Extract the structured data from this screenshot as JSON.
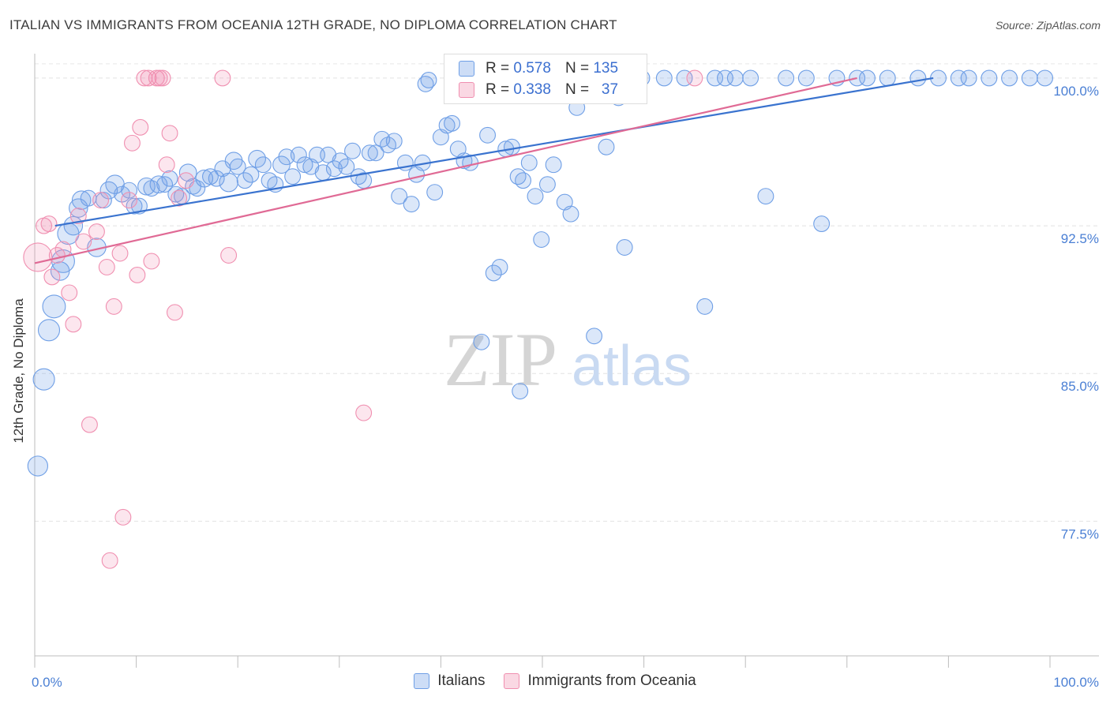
{
  "title": "ITALIAN VS IMMIGRANTS FROM OCEANIA 12TH GRADE, NO DIPLOMA CORRELATION CHART",
  "source": "Source: ZipAtlas.com",
  "watermark": {
    "zip": "ZIP",
    "atlas": "atlas"
  },
  "legend_top": [
    {
      "r_label": "R =",
      "r_value": "0.578",
      "n_label": "N =",
      "n_value": "135",
      "color": "#6f9fe6"
    },
    {
      "r_label": "R =",
      "r_value": "0.338",
      "n_label": "N =",
      "n_value": "37",
      "color": "#f08fb0"
    }
  ],
  "legend_bottom": [
    {
      "label": "Italians",
      "color": "#6f9fe6"
    },
    {
      "label": "Immigrants from Oceania",
      "color": "#f08fb0"
    }
  ],
  "chart_data": {
    "type": "scatter",
    "title": "ITALIAN VS IMMIGRANTS FROM OCEANIA 12TH GRADE, NO DIPLOMA CORRELATION CHART",
    "xlabel": "",
    "ylabel": "12th Grade, No Diploma",
    "xlim": [
      0,
      100
    ],
    "ylim": [
      70.7,
      101.4
    ],
    "x_tick_labels": [
      {
        "value": 0,
        "label": "0.0%"
      },
      {
        "value": 100,
        "label": "100.0%"
      }
    ],
    "y_tick_labels": [
      {
        "value": 100.0,
        "label": "100.0%"
      },
      {
        "value": 92.5,
        "label": "92.5%"
      },
      {
        "value": 85.0,
        "label": "85.0%"
      },
      {
        "value": 77.5,
        "label": "77.5%"
      }
    ],
    "grid": true,
    "legend_position": "bottom",
    "series": [
      {
        "name": "Italians",
        "color": "#6f9fe6",
        "trend": {
          "x": [
            2.0,
            88.5
          ],
          "y": [
            92.5,
            100.0
          ]
        },
        "points": [
          [
            0.3,
            80.3,
            1.4
          ],
          [
            0.9,
            84.7,
            1.5
          ],
          [
            1.4,
            87.2,
            1.5
          ],
          [
            1.9,
            88.4,
            1.6
          ],
          [
            2.5,
            90.2,
            1.3
          ],
          [
            2.8,
            90.7,
            1.6
          ],
          [
            3.3,
            92.1,
            1.5
          ],
          [
            3.8,
            92.5,
            1.3
          ],
          [
            4.3,
            93.4,
            1.3
          ],
          [
            4.6,
            93.8,
            1.3
          ],
          [
            5.3,
            93.9,
            1.1
          ],
          [
            6.1,
            91.4,
            1.3
          ],
          [
            6.8,
            93.8,
            1.1
          ],
          [
            7.3,
            94.3,
            1.2
          ],
          [
            7.9,
            94.6,
            1.3
          ],
          [
            8.6,
            94.1,
            1.1
          ],
          [
            9.3,
            94.3,
            1.1
          ],
          [
            9.8,
            93.5,
            1.1
          ],
          [
            10.3,
            93.5,
            1.1
          ],
          [
            11.0,
            94.5,
            1.2
          ],
          [
            11.5,
            94.4,
            1.1
          ],
          [
            12.2,
            94.6,
            1.2
          ],
          [
            12.8,
            94.6,
            1.1
          ],
          [
            13.3,
            94.9,
            1.1
          ],
          [
            13.9,
            94.1,
            1.1
          ],
          [
            14.5,
            94.0,
            1.1
          ],
          [
            15.1,
            95.2,
            1.2
          ],
          [
            15.6,
            94.5,
            1.1
          ],
          [
            16.0,
            94.4,
            1.1
          ],
          [
            16.7,
            94.9,
            1.2
          ],
          [
            17.3,
            95.0,
            1.1
          ],
          [
            17.9,
            94.9,
            1.1
          ],
          [
            18.5,
            95.4,
            1.1
          ],
          [
            19.1,
            94.7,
            1.3
          ],
          [
            19.6,
            95.8,
            1.2
          ],
          [
            20.0,
            95.5,
            1.1
          ],
          [
            20.7,
            94.8,
            1.1
          ],
          [
            21.3,
            95.1,
            1.1
          ],
          [
            21.9,
            95.9,
            1.2
          ],
          [
            22.5,
            95.6,
            1.1
          ],
          [
            23.1,
            94.8,
            1.1
          ],
          [
            23.7,
            94.6,
            1.1
          ],
          [
            24.3,
            95.6,
            1.2
          ],
          [
            24.8,
            96.0,
            1.1
          ],
          [
            25.4,
            95.0,
            1.1
          ],
          [
            26.0,
            96.1,
            1.1
          ],
          [
            26.6,
            95.6,
            1.1
          ],
          [
            27.2,
            95.5,
            1.1
          ],
          [
            27.8,
            96.1,
            1.1
          ],
          [
            28.4,
            95.2,
            1.1
          ],
          [
            28.9,
            96.1,
            1.1
          ],
          [
            29.5,
            95.4,
            1.1
          ],
          [
            30.1,
            95.8,
            1.1
          ],
          [
            30.7,
            95.5,
            1.1
          ],
          [
            31.3,
            96.3,
            1.1
          ],
          [
            31.9,
            95.0,
            1.1
          ],
          [
            32.4,
            94.8,
            1.1
          ],
          [
            33.0,
            96.2,
            1.1
          ],
          [
            33.6,
            96.2,
            1.1
          ],
          [
            34.2,
            96.9,
            1.1
          ],
          [
            34.8,
            96.6,
            1.1
          ],
          [
            35.4,
            96.8,
            1.1
          ],
          [
            35.9,
            94.0,
            1.1
          ],
          [
            36.5,
            95.7,
            1.1
          ],
          [
            37.1,
            93.6,
            1.1
          ],
          [
            37.6,
            95.1,
            1.1
          ],
          [
            38.2,
            95.7,
            1.1
          ],
          [
            38.8,
            99.9,
            1.1
          ],
          [
            39.4,
            94.2,
            1.1
          ],
          [
            40.0,
            97.0,
            1.1
          ],
          [
            40.6,
            97.6,
            1.1
          ],
          [
            41.1,
            97.7,
            1.1
          ],
          [
            41.7,
            96.4,
            1.1
          ],
          [
            42.3,
            95.8,
            1.1
          ],
          [
            42.9,
            95.7,
            1.1
          ],
          [
            43.5,
            99.7,
            1.1
          ],
          [
            44.1,
            99.9,
            1.1
          ],
          [
            44.6,
            97.1,
            1.1
          ],
          [
            45.2,
            90.1,
            1.1
          ],
          [
            45.8,
            90.4,
            1.1
          ],
          [
            46.4,
            96.4,
            1.1
          ],
          [
            47.0,
            96.5,
            1.1
          ],
          [
            47.6,
            95.0,
            1.1
          ],
          [
            48.1,
            94.8,
            1.1
          ],
          [
            48.7,
            95.7,
            1.1
          ],
          [
            49.3,
            94.0,
            1.1
          ],
          [
            49.9,
            91.8,
            1.1
          ],
          [
            50.5,
            94.6,
            1.1
          ],
          [
            51.1,
            95.6,
            1.1
          ],
          [
            51.6,
            100.0,
            1.1
          ],
          [
            52.2,
            93.7,
            1.1
          ],
          [
            52.8,
            93.1,
            1.1
          ],
          [
            53.4,
            98.5,
            1.1
          ],
          [
            54.0,
            100.0,
            1.1
          ],
          [
            54.6,
            100.0,
            1.1
          ],
          [
            55.1,
            86.9,
            1.1
          ],
          [
            55.7,
            100.0,
            1.1
          ],
          [
            56.3,
            96.5,
            1.1
          ],
          [
            56.9,
            100.0,
            1.1
          ],
          [
            57.5,
            99.0,
            1.1
          ],
          [
            58.1,
            91.4,
            1.1
          ],
          [
            58.6,
            100.0,
            1.1
          ],
          [
            59.2,
            100.0,
            1.1
          ],
          [
            59.8,
            100.0,
            1.1
          ],
          [
            62.0,
            100.0,
            1.1
          ],
          [
            64.0,
            100.0,
            1.1
          ],
          [
            66.0,
            88.4,
            1.1
          ],
          [
            67.0,
            100.0,
            1.1
          ],
          [
            68.0,
            100.0,
            1.1
          ],
          [
            69.0,
            100.0,
            1.1
          ],
          [
            70.5,
            100.0,
            1.1
          ],
          [
            72.0,
            94.0,
            1.1
          ],
          [
            74.0,
            100.0,
            1.1
          ],
          [
            76.0,
            100.0,
            1.1
          ],
          [
            77.5,
            92.6,
            1.1
          ],
          [
            79.0,
            100.0,
            1.1
          ],
          [
            81.0,
            100.0,
            1.1
          ],
          [
            82.0,
            100.0,
            1.1
          ],
          [
            84.0,
            100.0,
            1.1
          ],
          [
            87.0,
            100.0,
            1.1
          ],
          [
            89.0,
            100.0,
            1.1
          ],
          [
            91.0,
            100.0,
            1.1
          ],
          [
            92.0,
            100.0,
            1.1
          ],
          [
            94.0,
            100.0,
            1.1
          ],
          [
            96.0,
            100.0,
            1.1
          ],
          [
            98.0,
            100.0,
            1.1
          ],
          [
            99.5,
            100.0,
            1.1
          ],
          [
            44.0,
            86.6,
            1.1
          ],
          [
            47.8,
            84.1,
            1.1
          ],
          [
            38.5,
            99.7,
            1.1
          ],
          [
            47.2,
            99.8,
            1.1
          ],
          [
            49.5,
            99.9,
            1.1
          ],
          [
            51.0,
            99.8,
            1.1
          ],
          [
            53.0,
            99.9,
            1.1
          ],
          [
            55.3,
            99.9,
            1.1
          ]
        ]
      },
      {
        "name": "Immigrants from Oceania",
        "color": "#f08fb0",
        "trend": {
          "x": [
            0.0,
            81.0
          ],
          "y": [
            90.6,
            100.0
          ]
        },
        "points": [
          [
            0.3,
            90.9,
            2.0
          ],
          [
            0.9,
            92.5,
            1.1
          ],
          [
            1.4,
            92.6,
            1.1
          ],
          [
            1.7,
            89.9,
            1.1
          ],
          [
            2.2,
            91.0,
            1.1
          ],
          [
            2.8,
            91.3,
            1.1
          ],
          [
            3.4,
            89.1,
            1.1
          ],
          [
            3.8,
            87.5,
            1.1
          ],
          [
            4.3,
            93.0,
            1.1
          ],
          [
            4.8,
            91.7,
            1.1
          ],
          [
            5.4,
            82.4,
            1.1
          ],
          [
            6.1,
            92.2,
            1.1
          ],
          [
            6.5,
            93.8,
            1.1
          ],
          [
            7.1,
            90.4,
            1.1
          ],
          [
            7.4,
            75.5,
            1.1
          ],
          [
            7.8,
            88.4,
            1.1
          ],
          [
            8.4,
            91.1,
            1.1
          ],
          [
            8.7,
            77.7,
            1.1
          ],
          [
            9.3,
            93.8,
            1.1
          ],
          [
            9.6,
            96.7,
            1.1
          ],
          [
            10.1,
            90.0,
            1.1
          ],
          [
            10.4,
            97.5,
            1.1
          ],
          [
            10.8,
            100.0,
            1.1
          ],
          [
            11.2,
            100.0,
            1.1
          ],
          [
            11.5,
            90.7,
            1.1
          ],
          [
            12.0,
            100.0,
            1.1
          ],
          [
            12.3,
            100.0,
            1.1
          ],
          [
            12.6,
            100.0,
            1.1
          ],
          [
            13.0,
            95.6,
            1.1
          ],
          [
            13.3,
            97.2,
            1.1
          ],
          [
            13.8,
            88.1,
            1.1
          ],
          [
            14.2,
            93.9,
            1.1
          ],
          [
            14.9,
            94.8,
            1.1
          ],
          [
            18.5,
            100.0,
            1.1
          ],
          [
            19.1,
            91.0,
            1.1
          ],
          [
            32.4,
            83.0,
            1.1
          ],
          [
            65.0,
            100.0,
            1.1
          ]
        ]
      }
    ]
  }
}
